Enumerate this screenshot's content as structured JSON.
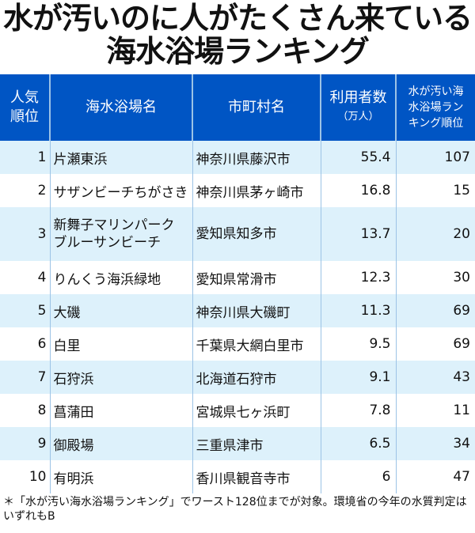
{
  "title": {
    "line1": "水が汚いのに人がたくさん来ている",
    "line2": "海水浴場ランキング"
  },
  "table": {
    "headers": {
      "rank": [
        "人気",
        "順位"
      ],
      "beach": "海水浴場名",
      "municipality": "市町村名",
      "visitors": "利用者数",
      "visitors_unit": "（万人）",
      "dirty_rank": [
        "水が汚い海",
        "水浴場ラン",
        "キング順位"
      ]
    },
    "rows": [
      {
        "rank": "1",
        "beach": [
          "片瀬東浜"
        ],
        "municipality": "神奈川県藤沢市",
        "visitors": "55.4",
        "dirty_rank": "107"
      },
      {
        "rank": "2",
        "beach": [
          "サザンビーチちがさき"
        ],
        "municipality": "神奈川県茅ヶ崎市",
        "visitors": "16.8",
        "dirty_rank": "15"
      },
      {
        "rank": "3",
        "beach": [
          "新舞子マリンパーク",
          "ブルーサンビーチ"
        ],
        "municipality": "愛知県知多市",
        "visitors": "13.7",
        "dirty_rank": "20"
      },
      {
        "rank": "4",
        "beach": [
          "りんくう海浜緑地"
        ],
        "municipality": "愛知県常滑市",
        "visitors": "12.3",
        "dirty_rank": "30"
      },
      {
        "rank": "5",
        "beach": [
          "大磯"
        ],
        "municipality": "神奈川県大磯町",
        "visitors": "11.3",
        "dirty_rank": "69"
      },
      {
        "rank": "6",
        "beach": [
          "白里"
        ],
        "municipality": "千葉県大網白里市",
        "visitors": "9.5",
        "dirty_rank": "69"
      },
      {
        "rank": "7",
        "beach": [
          "石狩浜"
        ],
        "municipality": "北海道石狩市",
        "visitors": "9.1",
        "dirty_rank": "43"
      },
      {
        "rank": "8",
        "beach": [
          "菖蒲田"
        ],
        "municipality": "宮城県七ヶ浜町",
        "visitors": "7.8",
        "dirty_rank": "11"
      },
      {
        "rank": "9",
        "beach": [
          "御殿場"
        ],
        "municipality": "三重県津市",
        "visitors": "6.5",
        "dirty_rank": "34"
      },
      {
        "rank": "10",
        "beach": [
          "有明浜"
        ],
        "municipality": "香川県観音寺市",
        "visitors": "6",
        "dirty_rank": "47"
      }
    ]
  },
  "footnote": "＊「水が汚い海水浴場ランキング」でワースト128位までが対象。環境省の今年の水質判定はいずれもB",
  "colors": {
    "header_bg": "#0055c4",
    "row_alt_bg": "#ddf1fb",
    "divider": "#9cc3e6"
  }
}
